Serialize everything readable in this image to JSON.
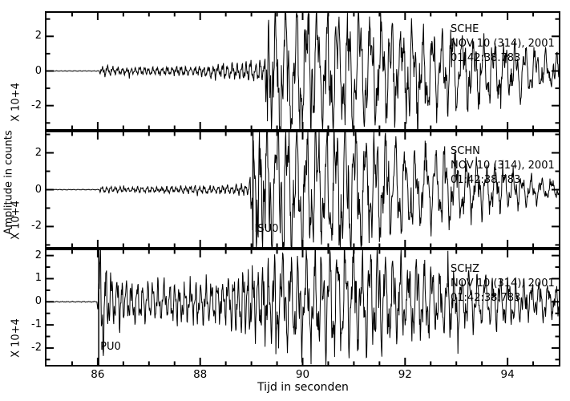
{
  "chart_data": {
    "type": "line",
    "title": "",
    "xlabel": "Tijd in seconden",
    "ylabel": "Amplitude in counts",
    "scale_label": "X 10+4",
    "x_min": 85,
    "x_max": 95,
    "x_major_ticks": [
      86,
      88,
      90,
      92,
      94
    ],
    "x_tick_labels": [
      "86",
      "88",
      "90",
      "92",
      "94"
    ],
    "x_minor_step": 0.5,
    "grid": false,
    "legend": false,
    "colors": {
      "trace": "#000000",
      "background": "#ffffff",
      "frame": "#000000"
    },
    "panels": [
      {
        "station": "SCHE",
        "date": "NOV 10 (314), 2001",
        "time": "01:42:38.783",
        "y_major_ticks": [
          -2,
          0,
          2
        ],
        "y_tick_labels": [
          "-2",
          "0",
          "2"
        ],
        "y_minor_ticks": [
          -3,
          -1,
          1,
          3
        ],
        "ylim": [
          -3.45,
          3.45
        ],
        "pick": null,
        "seed": 7,
        "freq_hi": 11,
        "freq_lo": 5.0,
        "s_onset": 89.3,
        "envelope": [
          [
            85,
            0.015
          ],
          [
            86.02,
            0.015
          ],
          [
            86.06,
            0.28
          ],
          [
            86.4,
            0.18
          ],
          [
            87.2,
            0.2
          ],
          [
            88.0,
            0.25
          ],
          [
            88.5,
            0.35
          ],
          [
            88.9,
            0.45
          ],
          [
            89.25,
            0.55
          ],
          [
            89.32,
            3.3
          ],
          [
            89.7,
            3.4
          ],
          [
            90.4,
            3.0
          ],
          [
            91.0,
            2.7
          ],
          [
            91.7,
            2.5
          ],
          [
            92.4,
            2.3
          ],
          [
            93.0,
            1.9
          ],
          [
            93.6,
            1.6
          ],
          [
            94.2,
            1.3
          ],
          [
            94.7,
            1.0
          ],
          [
            95,
            0.9
          ]
        ]
      },
      {
        "station": "SCHN",
        "date": "NOV 10 (314), 2001",
        "time": "01:42:38.783",
        "y_major_ticks": [
          -2,
          0,
          2
        ],
        "y_tick_labels": [
          "-2",
          "0",
          "2"
        ],
        "y_minor_ticks": [
          -3,
          -1,
          1,
          3
        ],
        "ylim": [
          -3.2,
          3.2
        ],
        "pick": {
          "time": 89.03,
          "label": "ISU0"
        },
        "seed": 13,
        "freq_hi": 11,
        "freq_lo": 5.2,
        "s_onset": 89.07,
        "envelope": [
          [
            85,
            0.015
          ],
          [
            86.02,
            0.015
          ],
          [
            86.06,
            0.16
          ],
          [
            86.5,
            0.12
          ],
          [
            87.5,
            0.15
          ],
          [
            88.4,
            0.2
          ],
          [
            88.95,
            0.26
          ],
          [
            89.07,
            3.2
          ],
          [
            89.6,
            3.4
          ],
          [
            90.3,
            3.0
          ],
          [
            90.8,
            3.2
          ],
          [
            91.4,
            2.5
          ],
          [
            92.1,
            2.1
          ],
          [
            92.8,
            1.6
          ],
          [
            93.5,
            1.2
          ],
          [
            94.2,
            0.8
          ],
          [
            94.7,
            0.5
          ],
          [
            95,
            0.4
          ]
        ]
      },
      {
        "station": "SCHZ",
        "date": "NOV 10 (314), 2001",
        "time": "01:42:38.783",
        "y_major_ticks": [
          -2,
          -1,
          0,
          1,
          2
        ],
        "y_tick_labels": [
          "-2",
          "-1",
          "0",
          "1",
          "2"
        ],
        "y_minor_ticks": [
          -2.5,
          -1.5,
          -0.5,
          0.5,
          1.5,
          2.5
        ],
        "ylim": [
          -2.8,
          2.3
        ],
        "pick": {
          "time": 86.02,
          "label": "PU0"
        },
        "seed": 29,
        "freq_hi": 9.5,
        "freq_lo": 6.5,
        "s_onset": 89.3,
        "envelope": [
          [
            85,
            0.015
          ],
          [
            85.99,
            0.015
          ],
          [
            86.04,
            2.3
          ],
          [
            86.2,
            1.1
          ],
          [
            86.5,
            0.75
          ],
          [
            87.3,
            0.7
          ],
          [
            88.2,
            0.8
          ],
          [
            88.8,
            1.0
          ],
          [
            89.3,
            1.5
          ],
          [
            89.9,
            1.7
          ],
          [
            90.4,
            1.9
          ],
          [
            90.9,
            2.1
          ],
          [
            91.5,
            1.8
          ],
          [
            92.1,
            1.5
          ],
          [
            92.7,
            1.2
          ],
          [
            93.4,
            1.0
          ],
          [
            94.0,
            0.85
          ],
          [
            94.6,
            0.7
          ],
          [
            95,
            0.6
          ]
        ]
      }
    ]
  }
}
